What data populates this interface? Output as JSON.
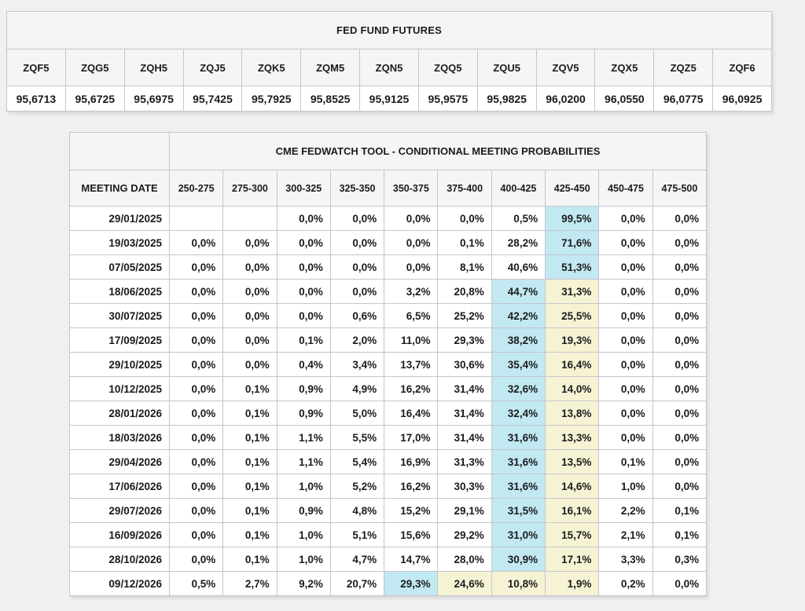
{
  "futures_table": {
    "title": "FED FUND FUTURES",
    "contracts": [
      "ZQF5",
      "ZQG5",
      "ZQH5",
      "ZQJ5",
      "ZQK5",
      "ZQM5",
      "ZQN5",
      "ZQQ5",
      "ZQU5",
      "ZQV5",
      "ZQX5",
      "ZQZ5",
      "ZQF6"
    ],
    "prices": [
      "95,6713",
      "95,6725",
      "95,6975",
      "95,7425",
      "95,7925",
      "95,8525",
      "95,9125",
      "95,9575",
      "95,9825",
      "96,0200",
      "96,0550",
      "96,0775",
      "96,0925"
    ]
  },
  "fedwatch_table": {
    "title": "CME FEDWATCH TOOL - CONDITIONAL MEETING PROBABILITIES",
    "date_header": "MEETING DATE",
    "range_headers": [
      "250-275",
      "275-300",
      "300-325",
      "325-350",
      "350-375",
      "375-400",
      "400-425",
      "425-450",
      "450-475",
      "475-500"
    ],
    "rows": [
      {
        "date": "29/01/2025",
        "values": [
          "",
          "",
          "0,0%",
          "0,0%",
          "0,0%",
          "0,0%",
          "0,5%",
          "99,5%",
          "0,0%",
          "0,0%"
        ],
        "highlights": [
          "",
          "",
          "",
          "",
          "",
          "",
          "",
          "blue",
          "",
          ""
        ]
      },
      {
        "date": "19/03/2025",
        "values": [
          "0,0%",
          "0,0%",
          "0,0%",
          "0,0%",
          "0,0%",
          "0,1%",
          "28,2%",
          "71,6%",
          "0,0%",
          "0,0%"
        ],
        "highlights": [
          "",
          "",
          "",
          "",
          "",
          "",
          "",
          "blue",
          "",
          ""
        ]
      },
      {
        "date": "07/05/2025",
        "values": [
          "0,0%",
          "0,0%",
          "0,0%",
          "0,0%",
          "0,0%",
          "8,1%",
          "40,6%",
          "51,3%",
          "0,0%",
          "0,0%"
        ],
        "highlights": [
          "",
          "",
          "",
          "",
          "",
          "",
          "",
          "blue",
          "",
          ""
        ]
      },
      {
        "date": "18/06/2025",
        "values": [
          "0,0%",
          "0,0%",
          "0,0%",
          "0,0%",
          "3,2%",
          "20,8%",
          "44,7%",
          "31,3%",
          "0,0%",
          "0,0%"
        ],
        "highlights": [
          "",
          "",
          "",
          "",
          "",
          "",
          "blue",
          "yellow",
          "",
          ""
        ]
      },
      {
        "date": "30/07/2025",
        "values": [
          "0,0%",
          "0,0%",
          "0,0%",
          "0,6%",
          "6,5%",
          "25,2%",
          "42,2%",
          "25,5%",
          "0,0%",
          "0,0%"
        ],
        "highlights": [
          "",
          "",
          "",
          "",
          "",
          "",
          "blue",
          "yellow",
          "",
          ""
        ]
      },
      {
        "date": "17/09/2025",
        "values": [
          "0,0%",
          "0,0%",
          "0,1%",
          "2,0%",
          "11,0%",
          "29,3%",
          "38,2%",
          "19,3%",
          "0,0%",
          "0,0%"
        ],
        "highlights": [
          "",
          "",
          "",
          "",
          "",
          "",
          "blue",
          "yellow",
          "",
          ""
        ]
      },
      {
        "date": "29/10/2025",
        "values": [
          "0,0%",
          "0,0%",
          "0,4%",
          "3,4%",
          "13,7%",
          "30,6%",
          "35,4%",
          "16,4%",
          "0,0%",
          "0,0%"
        ],
        "highlights": [
          "",
          "",
          "",
          "",
          "",
          "",
          "blue",
          "yellow",
          "",
          ""
        ]
      },
      {
        "date": "10/12/2025",
        "values": [
          "0,0%",
          "0,1%",
          "0,9%",
          "4,9%",
          "16,2%",
          "31,4%",
          "32,6%",
          "14,0%",
          "0,0%",
          "0,0%"
        ],
        "highlights": [
          "",
          "",
          "",
          "",
          "",
          "",
          "blue",
          "yellow",
          "",
          ""
        ]
      },
      {
        "date": "28/01/2026",
        "values": [
          "0,0%",
          "0,1%",
          "0,9%",
          "5,0%",
          "16,4%",
          "31,4%",
          "32,4%",
          "13,8%",
          "0,0%",
          "0,0%"
        ],
        "highlights": [
          "",
          "",
          "",
          "",
          "",
          "",
          "blue",
          "yellow",
          "",
          ""
        ]
      },
      {
        "date": "18/03/2026",
        "values": [
          "0,0%",
          "0,1%",
          "1,1%",
          "5,5%",
          "17,0%",
          "31,4%",
          "31,6%",
          "13,3%",
          "0,0%",
          "0,0%"
        ],
        "highlights": [
          "",
          "",
          "",
          "",
          "",
          "",
          "blue",
          "yellow",
          "",
          ""
        ]
      },
      {
        "date": "29/04/2026",
        "values": [
          "0,0%",
          "0,1%",
          "1,1%",
          "5,4%",
          "16,9%",
          "31,3%",
          "31,6%",
          "13,5%",
          "0,1%",
          "0,0%"
        ],
        "highlights": [
          "",
          "",
          "",
          "",
          "",
          "",
          "blue",
          "yellow",
          "",
          ""
        ]
      },
      {
        "date": "17/06/2026",
        "values": [
          "0,0%",
          "0,1%",
          "1,0%",
          "5,2%",
          "16,2%",
          "30,3%",
          "31,6%",
          "14,6%",
          "1,0%",
          "0,0%"
        ],
        "highlights": [
          "",
          "",
          "",
          "",
          "",
          "",
          "blue",
          "yellow",
          "",
          ""
        ]
      },
      {
        "date": "29/07/2026",
        "values": [
          "0,0%",
          "0,1%",
          "0,9%",
          "4,8%",
          "15,2%",
          "29,1%",
          "31,5%",
          "16,1%",
          "2,2%",
          "0,1%"
        ],
        "highlights": [
          "",
          "",
          "",
          "",
          "",
          "",
          "blue",
          "yellow",
          "",
          ""
        ]
      },
      {
        "date": "16/09/2026",
        "values": [
          "0,0%",
          "0,1%",
          "1,0%",
          "5,1%",
          "15,6%",
          "29,2%",
          "31,0%",
          "15,7%",
          "2,1%",
          "0,1%"
        ],
        "highlights": [
          "",
          "",
          "",
          "",
          "",
          "",
          "blue",
          "yellow",
          "",
          ""
        ]
      },
      {
        "date": "28/10/2026",
        "values": [
          "0,0%",
          "0,1%",
          "1,0%",
          "4,7%",
          "14,7%",
          "28,0%",
          "30,9%",
          "17,1%",
          "3,3%",
          "0,3%"
        ],
        "highlights": [
          "",
          "",
          "",
          "",
          "",
          "",
          "blue",
          "yellow",
          "",
          ""
        ]
      },
      {
        "date": "09/12/2026",
        "values": [
          "0,5%",
          "2,7%",
          "9,2%",
          "20,7%",
          "29,3%",
          "24,6%",
          "10,8%",
          "1,9%",
          "0,2%",
          "0,0%"
        ],
        "highlights": [
          "",
          "",
          "",
          "",
          "blue",
          "yellow",
          "yellow",
          "yellow",
          "",
          ""
        ]
      }
    ]
  },
  "colors": {
    "highlight_blue": "#c2e8f2",
    "highlight_yellow": "#f6f3d4",
    "header_bg": "#f5f5f6",
    "page_bg": "#f0f0f2"
  }
}
